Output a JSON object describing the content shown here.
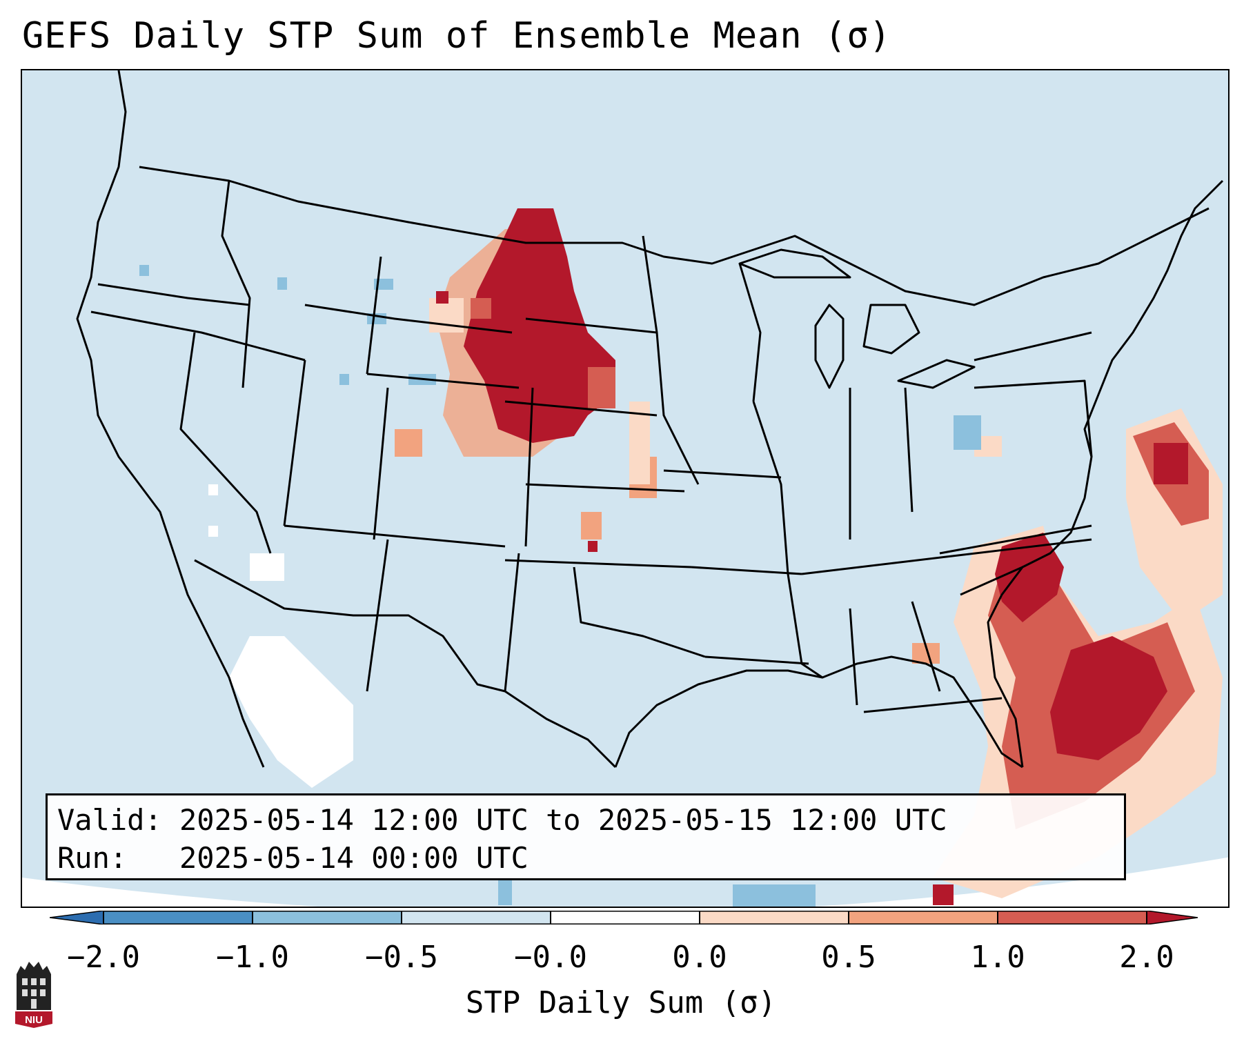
{
  "title": "GEFS Daily STP Sum of Ensemble Mean (σ)",
  "info": {
    "valid_label": "Valid:",
    "valid_value": "2025-05-14 12:00 UTC to 2025-05-15 12:00 UTC",
    "run_label": "Run:",
    "run_value": "2025-05-14 00:00 UTC"
  },
  "colorbar": {
    "label": "STP Daily Sum (σ)",
    "ticks": [
      "−2.0",
      "−1.0",
      "−0.5",
      "−0.0",
      "0.0",
      "0.5",
      "1.0",
      "2.0"
    ],
    "colors": [
      "#4a8fc4",
      "#8cc0dd",
      "#d2e5f0",
      "#ffffff",
      "#fbdac6",
      "#f2a37f",
      "#d55d52",
      "#b3182b"
    ],
    "extend": "both"
  },
  "map": {
    "background_color": "#d2e5f0",
    "outside_color": "#ffffff",
    "region": "Contiguous United States with northern Mexico, southern Canada and the Caribbean",
    "boundary_color": "#000000"
  },
  "logo": {
    "text": "NIU",
    "color": "#b3182b"
  }
}
